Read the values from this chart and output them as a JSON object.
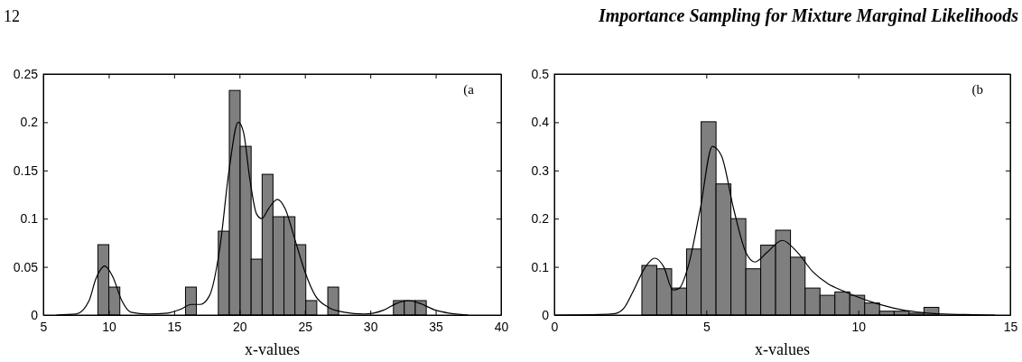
{
  "chart_data": [
    {
      "type": "histogram",
      "xlabel": "x-values",
      "annotations": [
        "12",
        "Importance Sampling for Mixture Marginal Likelihoods",
        "(a"
      ],
      "xlim": [
        5,
        40
      ],
      "xticks": [
        5,
        10,
        15,
        20,
        25,
        30,
        35,
        40
      ],
      "ylim": [
        0,
        0.25
      ],
      "yticks": [
        0,
        0.05,
        0.1,
        0.15,
        0.2,
        0.25
      ],
      "series": [
        {
          "color": "#7f7f7f",
          "bins": [
            9.17,
            10.01,
            10.85,
            11.68,
            12.52,
            13.36,
            14.19,
            15.03,
            15.87,
            16.7,
            17.54,
            18.38,
            19.22,
            20.05,
            20.89,
            21.73,
            22.56,
            23.4,
            24.24,
            25.07,
            25.91,
            26.75,
            27.58,
            28.42,
            29.26,
            30.09,
            30.93,
            31.77,
            32.6,
            33.44,
            34.28
          ],
          "values": [
            0.073,
            0.029,
            0,
            0,
            0,
            0,
            0,
            0,
            0.029,
            0,
            0,
            0.087,
            0.233,
            0.175,
            0.058,
            0.146,
            0.102,
            0.102,
            0.073,
            0.015,
            0,
            0.029,
            0,
            0,
            0,
            0,
            0,
            0.015,
            0.015,
            0.015
          ]
        },
        {
          "type": "line",
          "color": "#000000",
          "x": [
            6,
            7.5,
            8.5,
            9,
            9.7,
            10.3,
            11,
            11.7,
            13,
            14.5,
            15.5,
            16.3,
            17,
            17.7,
            18.5,
            19.2,
            19.9,
            20.3,
            20.8,
            21.3,
            21.7,
            22.2,
            22.9,
            23.5,
            24.2,
            25,
            25.8,
            26.8,
            28,
            29.5,
            31,
            32,
            32.9,
            33.8,
            35,
            36,
            37.5
          ],
          "values": [
            0,
            0.001,
            0.015,
            0.037,
            0.051,
            0.04,
            0.015,
            0.003,
            0.001,
            0.002,
            0.006,
            0.011,
            0.011,
            0.02,
            0.07,
            0.15,
            0.2,
            0.19,
            0.14,
            0.105,
            0.1,
            0.11,
            0.12,
            0.11,
            0.08,
            0.045,
            0.02,
            0.008,
            0.003,
            0.001,
            0.005,
            0.012,
            0.015,
            0.012,
            0.005,
            0.002,
            0
          ]
        }
      ]
    },
    {
      "type": "histogram",
      "xlabel": "x-values",
      "annotations": [
        "(b"
      ],
      "xlim": [
        0,
        15
      ],
      "xticks": [
        0,
        5,
        10,
        15
      ],
      "ylim": [
        0,
        0.5
      ],
      "yticks": [
        0,
        0.1,
        0.2,
        0.3,
        0.4,
        0.5
      ],
      "series": [
        {
          "color": "#7f7f7f",
          "bins": [
            2.88,
            3.37,
            3.86,
            4.35,
            4.83,
            5.32,
            5.81,
            6.3,
            6.79,
            7.28,
            7.77,
            8.25,
            8.74,
            9.23,
            9.72,
            10.21,
            10.7,
            11.18,
            11.67,
            12.16,
            12.65
          ],
          "values": [
            0.103,
            0.096,
            0.056,
            0.137,
            0.401,
            0.272,
            0.2,
            0.096,
            0.145,
            0.176,
            0.12,
            0.056,
            0.041,
            0.048,
            0.041,
            0.025,
            0.008,
            0.008,
            0.004,
            0.016
          ]
        },
        {
          "type": "line",
          "color": "#000000",
          "x": [
            0,
            1.5,
            2,
            2.3,
            2.6,
            3,
            3.3,
            3.6,
            3.9,
            4.1,
            4.4,
            4.8,
            5.2,
            5.5,
            5.9,
            6.3,
            6.6,
            7,
            7.5,
            8,
            8.5,
            9,
            9.5,
            10,
            10.5,
            11,
            11.5,
            12,
            12.5,
            13.5,
            14.5
          ],
          "values": [
            0,
            0.001,
            0.003,
            0.015,
            0.05,
            0.1,
            0.118,
            0.1,
            0.052,
            0.055,
            0.1,
            0.22,
            0.35,
            0.33,
            0.22,
            0.13,
            0.11,
            0.13,
            0.155,
            0.13,
            0.09,
            0.065,
            0.05,
            0.037,
            0.026,
            0.017,
            0.01,
            0.006,
            0.003,
            0.001,
            0
          ]
        }
      ]
    }
  ]
}
